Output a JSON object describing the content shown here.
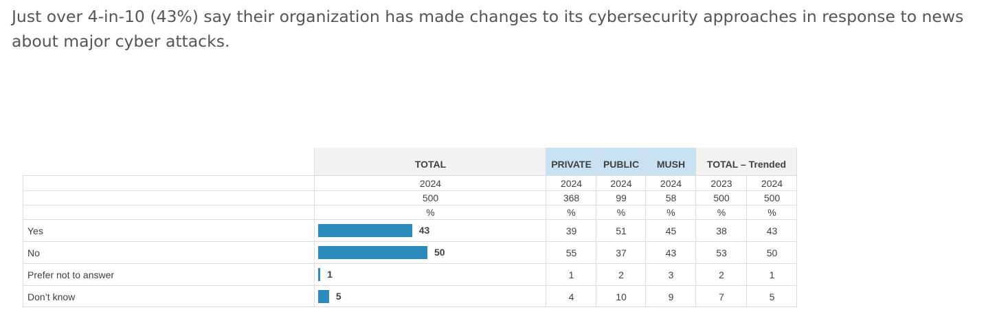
{
  "headline": "Just over 4-in-10 (43%) say their organization has made changes to its cybersecurity approaches in response to news about major cyber attacks.",
  "colors": {
    "bar": "#2a8bbd",
    "header_grey": "#f2f2f2",
    "header_blue": "#c9e2f3"
  },
  "table": {
    "group_headers": {
      "total": "TOTAL",
      "private": "PRIVATE",
      "public": "PUBLIC",
      "mush": "MUSH",
      "trended": "TOTAL – Trended"
    },
    "years": [
      "2024",
      "2024",
      "2024",
      "2024",
      "2023",
      "2024"
    ],
    "bases": [
      "500",
      "368",
      "99",
      "58",
      "500",
      "500"
    ],
    "units": [
      "%",
      "%",
      "%",
      "%",
      "%",
      "%"
    ]
  },
  "chart_data": {
    "type": "table",
    "title": "Just over 4-in-10 (43%) say their organization has made changes to its cybersecurity approaches in response to news about major cyber attacks.",
    "columns": [
      "TOTAL 2024",
      "PRIVATE 2024",
      "PUBLIC 2024",
      "MUSH 2024",
      "TOTAL – Trended 2023",
      "TOTAL – Trended 2024"
    ],
    "categories": [
      "Yes",
      "No",
      "Prefer not to answer",
      "Don’t know"
    ],
    "bar_scale_max": 100,
    "rows": [
      {
        "label": "Yes",
        "total": 43,
        "values": [
          39,
          51,
          45,
          38,
          43
        ]
      },
      {
        "label": "No",
        "total": 50,
        "values": [
          55,
          37,
          43,
          53,
          50
        ]
      },
      {
        "label": "Prefer not to answer",
        "total": 1,
        "values": [
          1,
          2,
          3,
          2,
          1
        ]
      },
      {
        "label": "Don’t know",
        "total": 5,
        "values": [
          4,
          10,
          9,
          7,
          5
        ]
      }
    ]
  }
}
